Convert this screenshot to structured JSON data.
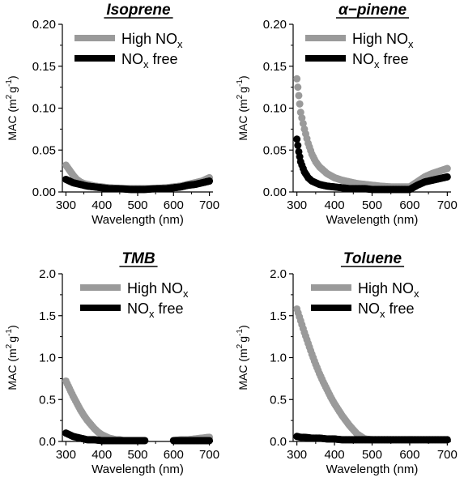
{
  "chart_data": [
    {
      "type": "scatter",
      "title": "Isoprene",
      "xlabel": "Wavelength (nm)",
      "ylabel": "MAC (m²g⁻¹)",
      "ylabel_parts": {
        "base": "MAC (m",
        "sup1": "2",
        "mid": "g",
        "sup2": "-1",
        "end": ")"
      },
      "xlim": [
        290,
        710
      ],
      "ylim": [
        0,
        0.2
      ],
      "xticks": [
        300,
        400,
        500,
        600,
        700
      ],
      "yticks": [
        0.0,
        0.05,
        0.1,
        0.15,
        0.2
      ],
      "ytick_labels": [
        "0.00",
        "0.05",
        "0.10",
        "0.15",
        "0.20"
      ],
      "legend_position": "top-left",
      "series": [
        {
          "name": "High NOx",
          "label_parts": {
            "main": "High NO",
            "sub": "x",
            "after": ""
          },
          "color": "#9a9a9a",
          "x": [
            300,
            310,
            320,
            330,
            340,
            350,
            360,
            380,
            400,
            420,
            450,
            480,
            500,
            520,
            550,
            580,
            600,
            620,
            640,
            660,
            680,
            700
          ],
          "y": [
            0.032,
            0.026,
            0.02,
            0.015,
            0.012,
            0.01,
            0.009,
            0.007,
            0.006,
            0.005,
            0.004,
            0.004,
            0.004,
            0.004,
            0.004,
            0.005,
            0.006,
            0.007,
            0.009,
            0.011,
            0.013,
            0.017
          ]
        },
        {
          "name": "NOx free",
          "label_parts": {
            "main": "NO",
            "sub": "x",
            "after": " free"
          },
          "color": "#000000",
          "x": [
            300,
            310,
            320,
            330,
            340,
            350,
            360,
            380,
            400,
            420,
            450,
            480,
            500,
            520,
            550,
            580,
            600,
            620,
            640,
            660,
            680,
            700
          ],
          "y": [
            0.015,
            0.013,
            0.011,
            0.01,
            0.009,
            0.008,
            0.007,
            0.006,
            0.005,
            0.004,
            0.004,
            0.003,
            0.003,
            0.003,
            0.004,
            0.004,
            0.005,
            0.006,
            0.008,
            0.009,
            0.011,
            0.013
          ]
        }
      ]
    },
    {
      "type": "scatter",
      "title": "α−pinene",
      "xlabel": "Wavelength (nm)",
      "ylabel": "MAC (m²g⁻¹)",
      "ylabel_parts": {
        "base": "MAC (m",
        "sup1": "2",
        "mid": "g",
        "sup2": "-1",
        "end": ")"
      },
      "xlim": [
        290,
        710
      ],
      "ylim": [
        0,
        0.2
      ],
      "xticks": [
        300,
        400,
        500,
        600,
        700
      ],
      "yticks": [
        0.0,
        0.05,
        0.1,
        0.15,
        0.2
      ],
      "ytick_labels": [
        "0.00",
        "0.05",
        "0.10",
        "0.15",
        "0.20"
      ],
      "legend_position": "top-left",
      "series": [
        {
          "name": "High NOx",
          "label_parts": {
            "main": "High NO",
            "sub": "x",
            "after": ""
          },
          "color": "#9a9a9a",
          "x": [
            300,
            305,
            310,
            320,
            330,
            340,
            350,
            360,
            380,
            400,
            420,
            440,
            460,
            480,
            500,
            520,
            550,
            580,
            600,
            620,
            640,
            660,
            680,
            700
          ],
          "y": [
            0.135,
            0.115,
            0.095,
            0.075,
            0.058,
            0.045,
            0.036,
            0.03,
            0.022,
            0.017,
            0.014,
            0.012,
            0.01,
            0.009,
            0.008,
            0.007,
            0.006,
            0.006,
            0.006,
            0.012,
            0.018,
            0.022,
            0.025,
            0.028
          ]
        },
        {
          "name": "NOx free",
          "label_parts": {
            "main": "NO",
            "sub": "x",
            "after": " free"
          },
          "color": "#000000",
          "x": [
            300,
            305,
            310,
            320,
            330,
            340,
            350,
            360,
            380,
            400,
            420,
            440,
            460,
            480,
            500,
            520,
            550,
            580,
            600,
            620,
            640,
            660,
            680,
            700
          ],
          "y": [
            0.063,
            0.048,
            0.036,
            0.024,
            0.017,
            0.013,
            0.011,
            0.009,
            0.007,
            0.006,
            0.005,
            0.004,
            0.004,
            0.004,
            0.003,
            0.003,
            0.003,
            0.003,
            0.003,
            0.008,
            0.012,
            0.014,
            0.016,
            0.018
          ]
        }
      ]
    },
    {
      "type": "scatter",
      "title": "TMB",
      "xlabel": "Wavelength (nm)",
      "ylabel": "MAC (m²g⁻¹)",
      "ylabel_parts": {
        "base": "MAC (m",
        "sup1": "2",
        "mid": "g",
        "sup2": "-1",
        "end": ")"
      },
      "xlim": [
        290,
        710
      ],
      "ylim": [
        0,
        2.0
      ],
      "xticks": [
        300,
        400,
        500,
        600,
        700
      ],
      "yticks": [
        0.0,
        0.5,
        1.0,
        1.5,
        2.0
      ],
      "ytick_labels": [
        "0.0",
        "0.5",
        "1.0",
        "1.5",
        "2.0"
      ],
      "legend_position": "top-right",
      "series": [
        {
          "name": "High NOx",
          "label_parts": {
            "main": "High NO",
            "sub": "x",
            "after": ""
          },
          "color": "#9a9a9a",
          "x": [
            300,
            310,
            320,
            330,
            340,
            350,
            360,
            370,
            380,
            390,
            400,
            410,
            420,
            430,
            440,
            450,
            460,
            480,
            500,
            520,
            600,
            620,
            640,
            660,
            680,
            700
          ],
          "y": [
            0.72,
            0.63,
            0.54,
            0.46,
            0.38,
            0.31,
            0.25,
            0.2,
            0.15,
            0.11,
            0.08,
            0.06,
            0.04,
            0.03,
            0.02,
            0.02,
            0.01,
            0.01,
            0.01,
            0.01,
            0.01,
            0.02,
            0.02,
            0.03,
            0.04,
            0.05
          ]
        },
        {
          "name": "NOx free",
          "label_parts": {
            "main": "NO",
            "sub": "x",
            "after": " free"
          },
          "color": "#000000",
          "x": [
            300,
            310,
            320,
            330,
            340,
            350,
            360,
            380,
            400,
            420,
            440,
            460,
            480,
            500,
            520,
            600,
            620,
            640,
            660,
            680,
            700
          ],
          "y": [
            0.1,
            0.08,
            0.06,
            0.05,
            0.04,
            0.03,
            0.02,
            0.02,
            0.01,
            0.01,
            0.01,
            0.01,
            0.01,
            0.01,
            0.01,
            0.01,
            0.01,
            0.01,
            0.01,
            0.01,
            0.01
          ]
        }
      ]
    },
    {
      "type": "scatter",
      "title": "Toluene",
      "xlabel": "Wavelength (nm)",
      "ylabel": "MAC (m²g⁻¹)",
      "ylabel_parts": {
        "base": "MAC (m",
        "sup1": "2",
        "mid": "g",
        "sup2": "-1",
        "end": ")"
      },
      "xlim": [
        290,
        710
      ],
      "ylim": [
        0,
        2.0
      ],
      "xticks": [
        300,
        400,
        500,
        600,
        700
      ],
      "yticks": [
        0.0,
        0.5,
        1.0,
        1.5,
        2.0
      ],
      "ytick_labels": [
        "0.0",
        "0.5",
        "1.0",
        "1.5",
        "2.0"
      ],
      "legend_position": "top-right",
      "series": [
        {
          "name": "High NOx",
          "label_parts": {
            "main": "High NO",
            "sub": "x",
            "after": ""
          },
          "color": "#9a9a9a",
          "x": [
            300,
            310,
            320,
            330,
            340,
            350,
            360,
            370,
            380,
            390,
            400,
            410,
            420,
            430,
            440,
            450,
            460,
            470,
            480,
            500,
            520,
            550,
            600,
            650,
            700
          ],
          "y": [
            1.58,
            1.44,
            1.3,
            1.17,
            1.04,
            0.92,
            0.81,
            0.71,
            0.62,
            0.53,
            0.45,
            0.38,
            0.31,
            0.25,
            0.19,
            0.14,
            0.09,
            0.06,
            0.03,
            0.02,
            0.02,
            0.02,
            0.02,
            0.02,
            0.02
          ]
        },
        {
          "name": "NOx free",
          "label_parts": {
            "main": "NO",
            "sub": "x",
            "after": " free"
          },
          "color": "#000000",
          "x": [
            300,
            310,
            320,
            340,
            360,
            380,
            400,
            420,
            440,
            460,
            480,
            500,
            520,
            550,
            580,
            600,
            620,
            650,
            680,
            700
          ],
          "y": [
            0.06,
            0.05,
            0.05,
            0.04,
            0.04,
            0.03,
            0.03,
            0.02,
            0.02,
            0.02,
            0.02,
            0.02,
            0.02,
            0.02,
            0.02,
            0.02,
            0.02,
            0.02,
            0.02,
            0.02
          ]
        }
      ]
    }
  ]
}
